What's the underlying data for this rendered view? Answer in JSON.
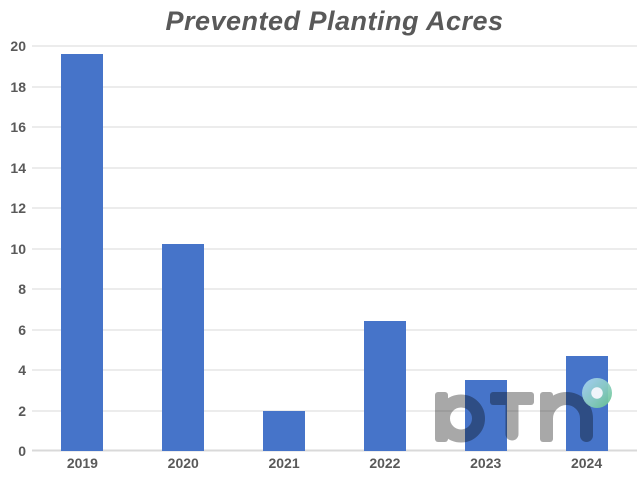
{
  "chart_data": {
    "type": "bar",
    "title": "Prevented Planting Acres",
    "categories": [
      "2019",
      "2020",
      "2021",
      "2022",
      "2023",
      "2024"
    ],
    "values": [
      19.6,
      10.2,
      2.0,
      6.4,
      3.5,
      4.7
    ],
    "xlabel": "",
    "ylabel": "",
    "ylim": [
      0,
      20
    ],
    "yticks": [
      0,
      2,
      4,
      6,
      8,
      10,
      12,
      14,
      16,
      18,
      20
    ],
    "grid": true,
    "legend": "none",
    "bar_color": "#4674c9",
    "gridline_color": "#d9d9d9",
    "label_color": "#595959",
    "title_color": "#595959",
    "background_color": "#ffffff"
  },
  "watermark": {
    "text": "DTN",
    "letter_color": "#a8a8a8",
    "ring_gradient": [
      "#a7d3ef",
      "#69c491"
    ]
  }
}
